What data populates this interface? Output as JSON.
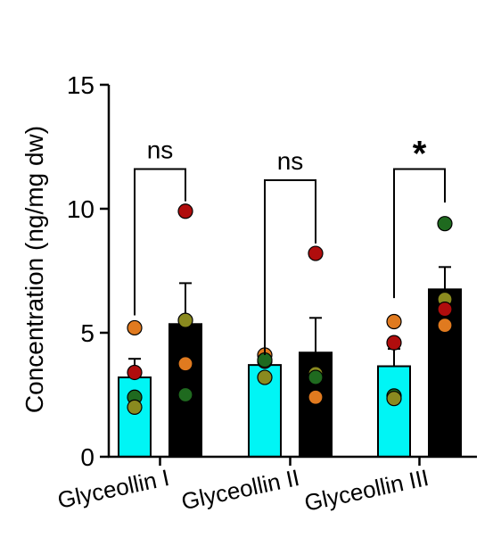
{
  "chart_data": {
    "type": "bar",
    "title": "",
    "xlabel": "",
    "ylabel": "Concentration (ng/mg dw)",
    "ylim": [
      0,
      15
    ],
    "yticks": [
      0,
      5,
      10,
      15
    ],
    "grid": false,
    "legend": "none",
    "categories": [
      "Glyceollin I",
      "Glyceollin II",
      "Glyceollin III"
    ],
    "series": [
      {
        "color": "#00f5f5",
        "values": [
          3.2,
          3.7,
          3.65
        ],
        "errors": [
          0.75,
          0.1,
          0.7
        ],
        "points": [
          [
            5.2,
            3.4,
            2.4,
            2.0
          ],
          [
            4.1,
            3.85,
            3.9,
            3.2
          ],
          [
            5.45,
            4.6,
            2.45,
            2.35
          ]
        ],
        "point_colors": [
          [
            "#e07a1f",
            "#b00d0d",
            "#1f6a1f",
            "#8a8a1f"
          ],
          [
            "#e07a1f",
            "#b00d0d",
            "#1f6a1f",
            "#8a8a1f"
          ],
          [
            "#e07a1f",
            "#b00d0d",
            "#1f6a1f",
            "#8a8a1f"
          ]
        ]
      },
      {
        "color": "#000000",
        "values": [
          5.35,
          4.2,
          6.75
        ],
        "errors": [
          1.65,
          1.4,
          0.9
        ],
        "points": [
          [
            9.9,
            5.5,
            3.75,
            2.5
          ],
          [
            8.2,
            3.35,
            3.2,
            2.4
          ],
          [
            9.4,
            6.35,
            5.95,
            5.3
          ]
        ],
        "point_colors": [
          [
            "#b00d0d",
            "#8a8a1f",
            "#e07a1f",
            "#1f6a1f"
          ],
          [
            "#b00d0d",
            "#8a8a1f",
            "#1f6a1f",
            "#e07a1f"
          ],
          [
            "#1f6a1f",
            "#8a8a1f",
            "#b00d0d",
            "#e07a1f"
          ]
        ]
      }
    ],
    "significance": [
      {
        "label": "ns",
        "bracket_y": 11.6,
        "drop_left": 5.7,
        "drop_right": 10.3
      },
      {
        "label": "ns",
        "bracket_y": 11.15,
        "drop_left": 4.1,
        "drop_right": 8.6
      },
      {
        "label": "*",
        "bracket_y": 11.6,
        "drop_left": 6.4,
        "drop_right": 10.25
      }
    ]
  }
}
